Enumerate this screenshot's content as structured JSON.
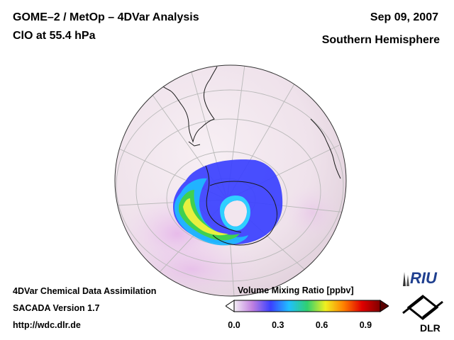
{
  "header": {
    "title": "GOME–2 / MetOp – 4DVar Analysis",
    "subtitle": "ClO at 55.4 hPa",
    "date": "Sep 09, 2007",
    "region": "Southern Hemisphere"
  },
  "footer": {
    "line1": "4DVar Chemical Data Assimilation",
    "line2": "SACADA Version 1.7",
    "line3": "http://wdc.dlr.de"
  },
  "colorbar": {
    "title": "Volume Mixing Ratio [ppbv]",
    "ticks": [
      "0.0",
      "0.3",
      "0.6",
      "0.9"
    ],
    "tick_values": [
      0.0,
      0.3,
      0.6,
      0.9
    ],
    "range": [
      0.0,
      1.0
    ],
    "colors": [
      "#f4eef6",
      "#c080e0",
      "#3a40ff",
      "#20c0ff",
      "#30d070",
      "#f0f020",
      "#ff8000",
      "#e00000",
      "#800000"
    ]
  },
  "logos": {
    "riu": "RIU",
    "dlr": "DLR"
  },
  "map": {
    "projection": "orthographic",
    "background_color": "#f2e6ee",
    "ocean_tint": "#ecdfe8",
    "graticule_color": "#b9b9b9",
    "coast_color": "#1a1a1a"
  }
}
